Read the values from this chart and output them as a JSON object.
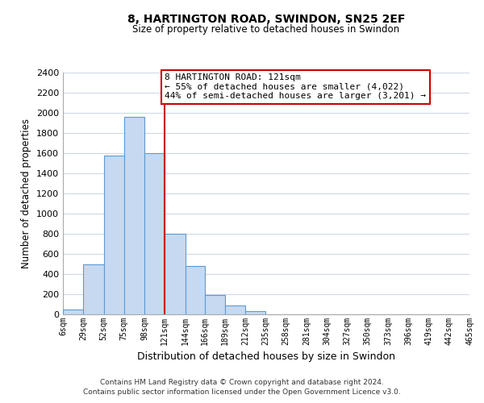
{
  "title": "8, HARTINGTON ROAD, SWINDON, SN25 2EF",
  "subtitle": "Size of property relative to detached houses in Swindon",
  "xlabel": "Distribution of detached houses by size in Swindon",
  "ylabel": "Number of detached properties",
  "annotation_line1": "8 HARTINGTON ROAD: 121sqm",
  "annotation_line2": "← 55% of detached houses are smaller (4,022)",
  "annotation_line3": "44% of semi-detached houses are larger (3,201) →",
  "bar_left_edges": [
    6,
    29,
    52,
    75,
    98,
    121,
    144,
    166,
    189,
    212,
    235,
    258,
    281,
    304,
    327,
    350,
    373,
    396,
    419,
    442
  ],
  "bar_heights": [
    50,
    500,
    1580,
    1960,
    1600,
    800,
    480,
    190,
    90,
    35,
    0,
    0,
    0,
    0,
    0,
    0,
    0,
    0,
    0,
    0
  ],
  "bar_widths": [
    23,
    23,
    23,
    23,
    23,
    23,
    22,
    23,
    23,
    23,
    23,
    23,
    23,
    23,
    23,
    23,
    23,
    23,
    23,
    23
  ],
  "bar_color": "#c6d9f0",
  "bar_edge_color": "#5b9bd5",
  "highlight_x": 121,
  "highlight_color": "#cc0000",
  "ylim": [
    0,
    2400
  ],
  "yticks": [
    0,
    200,
    400,
    600,
    800,
    1000,
    1200,
    1400,
    1600,
    1800,
    2000,
    2200,
    2400
  ],
  "xtick_labels": [
    "6sqm",
    "29sqm",
    "52sqm",
    "75sqm",
    "98sqm",
    "121sqm",
    "144sqm",
    "166sqm",
    "189sqm",
    "212sqm",
    "235sqm",
    "258sqm",
    "281sqm",
    "304sqm",
    "327sqm",
    "350sqm",
    "373sqm",
    "396sqm",
    "419sqm",
    "442sqm",
    "465sqm"
  ],
  "xtick_positions": [
    6,
    29,
    52,
    75,
    98,
    121,
    144,
    166,
    189,
    212,
    235,
    258,
    281,
    304,
    327,
    350,
    373,
    396,
    419,
    442,
    465
  ],
  "footnote1": "Contains HM Land Registry data © Crown copyright and database right 2024.",
  "footnote2": "Contains public sector information licensed under the Open Government Licence v3.0.",
  "bg_color": "#ffffff",
  "grid_color": "#d0d8e8",
  "annotation_box_color": "#ffffff",
  "annotation_box_edge": "#cc0000",
  "title_fontsize": 10,
  "subtitle_fontsize": 8.5
}
